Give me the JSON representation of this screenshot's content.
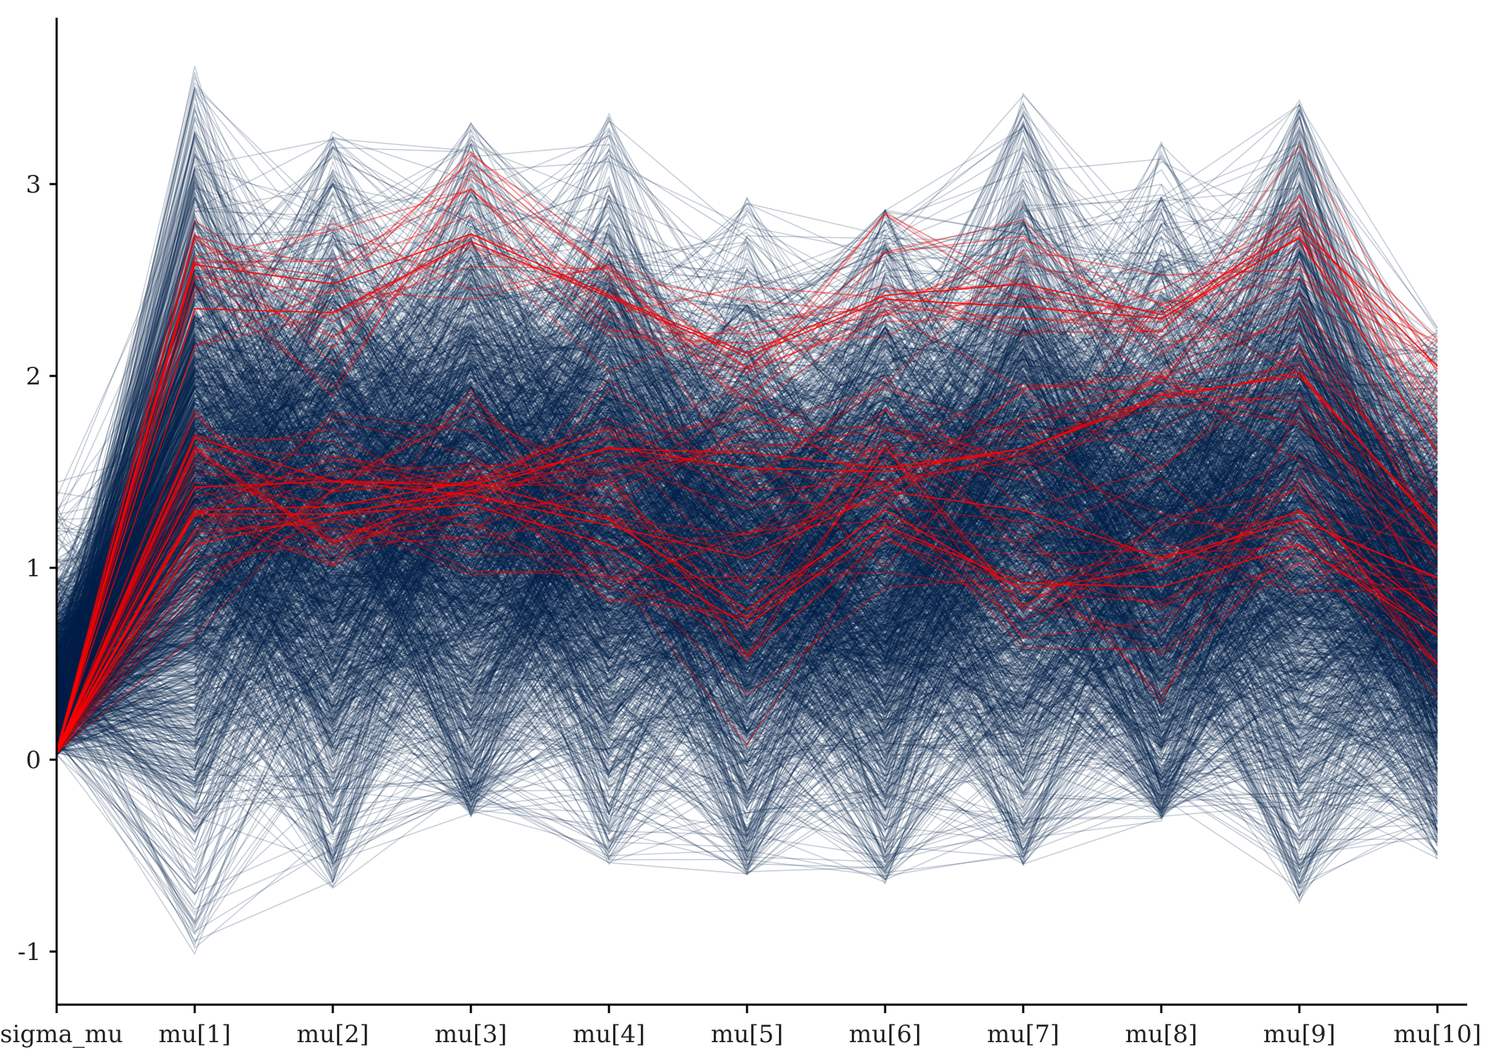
{
  "chart_data": {
    "type": "line",
    "title": "",
    "xlabel": "",
    "ylabel": "",
    "categories": [
      "sigma_mu",
      "mu[1]",
      "mu[2]",
      "mu[3]",
      "mu[4]",
      "mu[5]",
      "mu[6]",
      "mu[7]",
      "mu[8]",
      "mu[9]",
      "mu[10]"
    ],
    "ylim": [
      -1.28,
      3.86
    ],
    "yticks": [
      -1,
      0,
      1,
      2,
      3
    ],
    "yticklabels": [
      "-1",
      "0",
      "1",
      "2",
      "3"
    ],
    "grid": false,
    "legend": "none",
    "colors": {
      "non_divergent": "#011f4b",
      "divergent": "#ff0000",
      "axis": "#000000"
    },
    "draw_counts": {
      "non_divergent": 2000,
      "divergent": 60
    },
    "series": [
      {
        "kind": "non_divergent_band",
        "center": [
          0.35,
          1.35,
          1.3,
          1.35,
          1.3,
          1.05,
          1.15,
          1.3,
          1.15,
          1.35,
          0.85
        ],
        "lower": [
          0.0,
          -0.3,
          -0.3,
          -0.15,
          -0.2,
          -0.35,
          -0.35,
          -0.2,
          -0.2,
          -0.4,
          -0.2
        ],
        "upper": [
          1.4,
          2.9,
          2.8,
          3.0,
          2.8,
          2.5,
          2.6,
          3.0,
          2.7,
          3.0,
          2.0
        ],
        "min": [
          0.0,
          -1.05,
          -0.7,
          -0.3,
          -0.55,
          -0.6,
          -0.65,
          -0.55,
          -0.32,
          -0.75,
          -0.52
        ],
        "max": [
          1.48,
          3.63,
          3.28,
          3.32,
          3.37,
          2.95,
          2.88,
          3.48,
          3.22,
          3.44,
          2.26
        ]
      },
      {
        "kind": "divergent_highlight",
        "lines": [
          [
            0.03,
            2.58,
            2.48,
            2.74,
            2.42,
            2.12,
            2.42,
            2.48,
            2.32,
            2.78,
            2.05
          ],
          [
            0.03,
            2.35,
            2.33,
            2.7,
            2.41,
            2.1,
            2.4,
            2.36,
            2.3,
            2.72,
            1.6
          ],
          [
            0.03,
            1.12,
            1.28,
            1.4,
            1.63,
            1.52,
            1.5,
            1.62,
            1.9,
            2.0,
            1.22
          ],
          [
            0.03,
            1.28,
            1.28,
            1.33,
            1.12,
            0.7,
            1.22,
            0.92,
            0.9,
            1.12,
            0.65
          ],
          [
            0.03,
            1.42,
            1.45,
            1.43,
            1.62,
            1.6,
            1.52,
            1.62,
            1.88,
            2.02,
            1.2
          ],
          [
            0.03,
            1.68,
            1.45,
            1.38,
            1.22,
            1.05,
            1.4,
            1.3,
            1.05,
            1.25,
            0.95
          ],
          [
            0.03,
            1.3,
            1.32,
            1.45,
            1.25,
            0.78,
            1.3,
            0.88,
            1.0,
            1.3,
            0.75
          ]
        ]
      }
    ]
  }
}
